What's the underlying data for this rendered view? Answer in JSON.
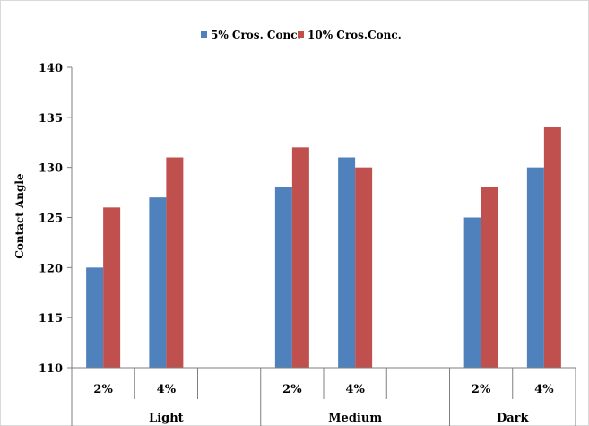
{
  "chart_data": {
    "type": "bar",
    "title": "",
    "xlabel": "",
    "ylabel": "Contact Angle",
    "ylim": [
      110,
      140
    ],
    "yticks": [
      110,
      115,
      120,
      125,
      130,
      135,
      140
    ],
    "grid": false,
    "legend_position": "top",
    "groups": [
      {
        "label": "Light",
        "categories": [
          "2%",
          "4%",
          ""
        ]
      },
      {
        "label": "Medium",
        "categories": [
          "2%",
          "4%",
          ""
        ]
      },
      {
        "label": "Dark",
        "categories": [
          "2%",
          "4%"
        ]
      }
    ],
    "categories": [
      "2%",
      "4%",
      "",
      "2%",
      "4%",
      "",
      "2%",
      "4%"
    ],
    "series": [
      {
        "name": "5% Cros. Conc.",
        "color": "#4f81bd",
        "values": [
          120,
          127,
          null,
          128,
          131,
          null,
          125,
          130
        ]
      },
      {
        "name": "10% Cros.Conc.",
        "color": "#c0504d",
        "values": [
          126,
          131,
          null,
          132,
          130,
          null,
          128,
          134
        ]
      }
    ]
  }
}
